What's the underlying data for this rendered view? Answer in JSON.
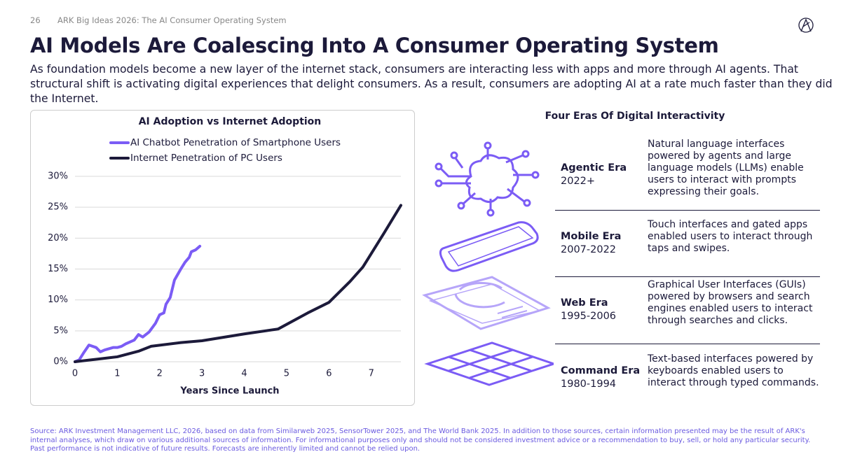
{
  "header": {
    "page_number": "26",
    "deck_title": "ARK Big Ideas 2026: The AI Consumer Operating System",
    "title": "AI Models Are Coalescing Into A Consumer Operating System",
    "subtitle": "As foundation models become a new layer of the internet stack, consumers are interacting less with apps and more through AI agents. That structural shift is activating digital experiences that delight consumers. As a result, consumers are adopting AI at a rate much faster than they did the Internet."
  },
  "chart_data": {
    "type": "line",
    "title": "AI Adoption vs Internet Adoption",
    "x_label": "Years Since Launch",
    "legend": "upper left",
    "grid": true,
    "xlim": [
      0,
      7.7
    ],
    "xticks": [
      0,
      1,
      2,
      3,
      4,
      5,
      6,
      7
    ],
    "ylim": [
      0,
      30
    ],
    "yticks": [
      {
        "value": 0,
        "label": "0%"
      },
      {
        "value": 5,
        "label": "5%"
      },
      {
        "value": 10,
        "label": "10%"
      },
      {
        "value": 15,
        "label": "15%"
      },
      {
        "value": 20,
        "label": "20%"
      },
      {
        "value": 25,
        "label": "25%"
      },
      {
        "value": 30,
        "label": "30%"
      }
    ],
    "series": [
      {
        "name": "AI Chatbot Penetration of Smartphone Users",
        "color": "#7b5cf5",
        "x": [
          0,
          0.1,
          0.2,
          0.33,
          0.5,
          0.6,
          0.7,
          0.9,
          1.0,
          1.1,
          1.2,
          1.4,
          1.5,
          1.6,
          1.75,
          1.9,
          2.0,
          2.1,
          2.15,
          2.25,
          2.35,
          2.5,
          2.6,
          2.7,
          2.75,
          2.85,
          2.95
        ],
        "values": [
          0,
          0.3,
          1.4,
          2.7,
          2.3,
          1.6,
          1.9,
          2.3,
          2.3,
          2.5,
          2.9,
          3.5,
          4.4,
          4.0,
          4.8,
          6.2,
          7.6,
          7.9,
          9.3,
          10.4,
          13.2,
          15,
          16.1,
          16.9,
          17.8,
          18.1,
          18.7
        ]
      },
      {
        "name": "Internet Penetration of PC Users",
        "color": "#1c1a3a",
        "x": [
          0,
          0.5,
          1,
          1.5,
          1.8,
          2.5,
          3,
          4,
          4.8,
          5.5,
          6,
          6.5,
          6.8,
          6.9,
          7.3,
          7.7
        ],
        "values": [
          0,
          0.4,
          0.8,
          1.7,
          2.5,
          3.1,
          3.4,
          4.5,
          5.3,
          7.9,
          9.6,
          13,
          15.3,
          16.4,
          20.8,
          25.3
        ]
      }
    ]
  },
  "eras_panel": {
    "title": "Four Eras Of Digital Interactivity",
    "eras": [
      {
        "name": "Agentic Era",
        "years": "2022+",
        "description": "Natural language interfaces powered by agents and large language models (LLMs) enable users to interact with prompts expressing their goals."
      },
      {
        "name": "Mobile Era",
        "years": "2007-2022",
        "description": "Touch interfaces and gated apps enabled users to interact through taps and swipes."
      },
      {
        "name": "Web Era",
        "years": "1995-2006",
        "description": "Graphical User Interfaces (GUIs) powered by browsers and search engines enabled users to interact through searches and clicks."
      },
      {
        "name": "Command Era",
        "years": "1980-1994",
        "description": "Text-based interfaces powered by keyboards enabled users to interact through typed commands."
      }
    ]
  },
  "footer": {
    "source": "Source: ARK Investment Management LLC, 2026, based on data from Similarweb 2025, SensorTower 2025, and The World Bank 2025. In addition to those sources, certain information presented may be the result of ARK's internal analyses, which draw on various additional sources of information. For informational purposes only and should not be considered investment advice or a recommendation to buy, sell, or hold any particular security. Past performance is not indicative of future results. Forecasts are inherently limited and cannot be relied upon."
  }
}
